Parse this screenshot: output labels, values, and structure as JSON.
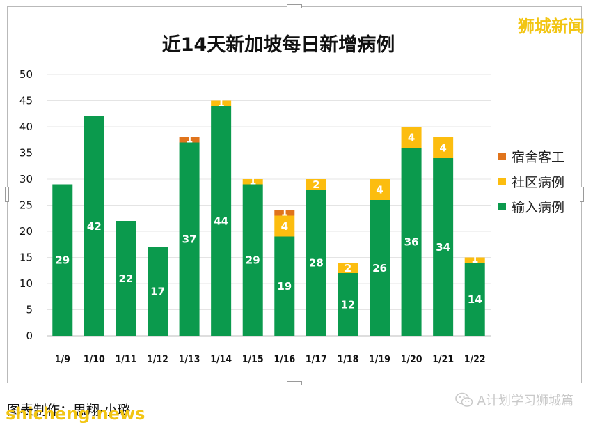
{
  "brand": "狮城新闻",
  "footer": {
    "credit": "图表制作：思翔-小璐",
    "watermark": "shicheng.news",
    "account": "A计划学习狮城篇"
  },
  "colors": {
    "imported": "#0b9a4d",
    "community": "#fcbd0f",
    "dormitory": "#e0741c",
    "grid": "#e4e4e4"
  },
  "chart_data": {
    "type": "bar",
    "stacked": true,
    "title": "近14天新加坡每日新增病例",
    "xlabel": "",
    "ylabel": "",
    "ylim": [
      0,
      50
    ],
    "yticks": [
      0,
      5,
      10,
      15,
      20,
      25,
      30,
      35,
      40,
      45,
      50
    ],
    "grid": true,
    "legend": "right",
    "categories": [
      "1/9",
      "1/10",
      "1/11",
      "1/12",
      "1/13",
      "1/14",
      "1/15",
      "1/16",
      "1/17",
      "1/18",
      "1/19",
      "1/20",
      "1/21",
      "1/22"
    ],
    "series": [
      {
        "name": "输入病例",
        "values": [
          29,
          42,
          22,
          17,
          37,
          44,
          29,
          19,
          28,
          12,
          26,
          36,
          34,
          14
        ]
      },
      {
        "name": "社区病例",
        "values": [
          0,
          0,
          0,
          0,
          0,
          1,
          1,
          4,
          2,
          2,
          4,
          4,
          4,
          1
        ]
      },
      {
        "name": "宿舍客工",
        "values": [
          0,
          0,
          0,
          0,
          1,
          0,
          0,
          1,
          0,
          0,
          0,
          0,
          0,
          0
        ]
      }
    ],
    "legend_order": [
      "宿舍客工",
      "社区病例",
      "输入病例"
    ]
  }
}
